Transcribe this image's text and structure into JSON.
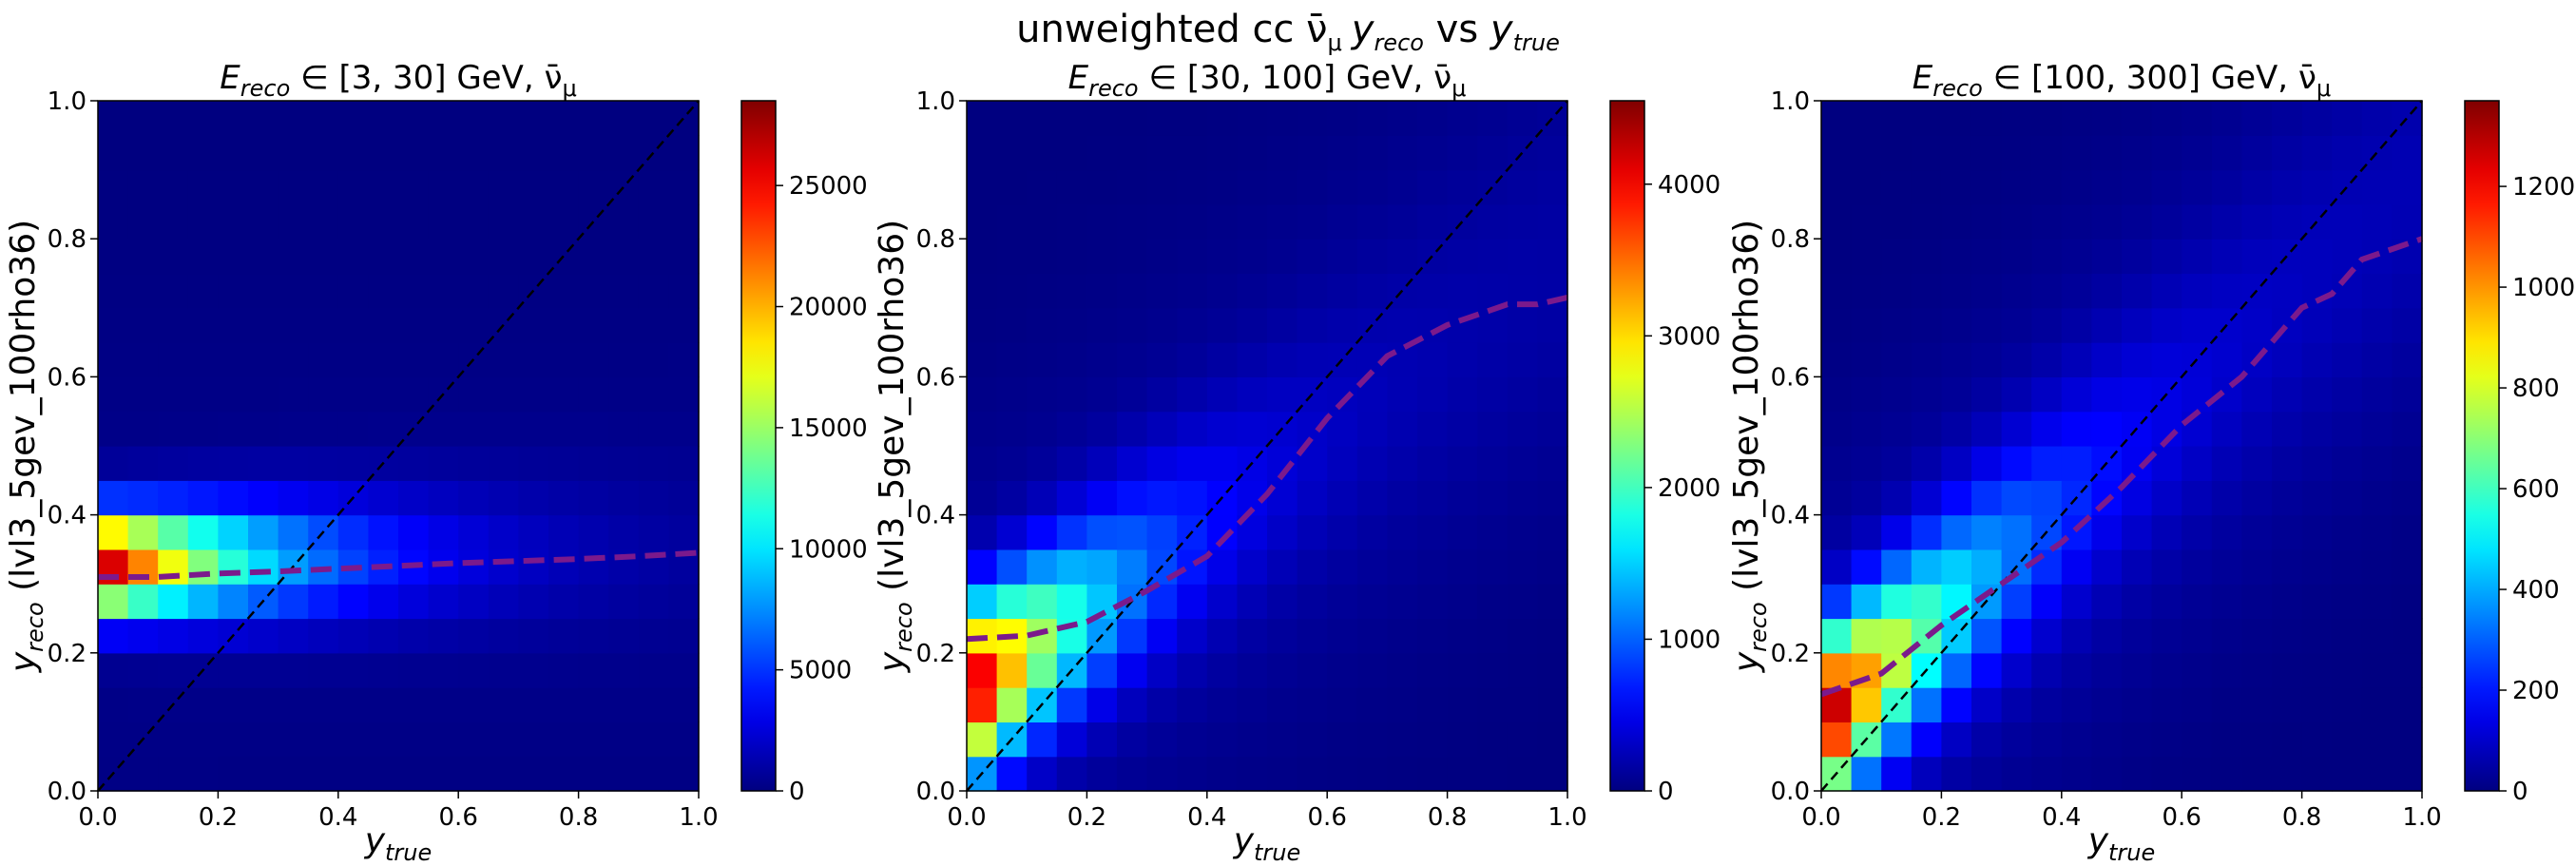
{
  "figure": {
    "title_parts": {
      "pre": "unweighted cc ",
      "nu": "ν̄",
      "nu_sub": "μ",
      "y1": "y",
      "y1_sub": "reco",
      "vs": " vs  ",
      "y2": "y",
      "y2_sub": "true"
    }
  },
  "chart_data": [
    {
      "type": "heatmap",
      "title_parts": {
        "E": "E",
        "E_sub": "reco",
        "range": " ∈ [3, 30] GeV, ",
        "nu": "ν̄",
        "nu_sub": "μ"
      },
      "xlabel": {
        "main": "y",
        "sub": "true"
      },
      "ylabel": {
        "main": "y",
        "sub": "reco",
        "rest": " (lvl3_5gev_100rho36)"
      },
      "xlim": [
        0,
        1
      ],
      "ylim": [
        0,
        1
      ],
      "xticks": [
        "0.0",
        "0.2",
        "0.4",
        "0.6",
        "0.8",
        "1.0"
      ],
      "yticks": [
        "0.0",
        "0.2",
        "0.4",
        "0.6",
        "0.8",
        "1.0"
      ],
      "colorbar": {
        "min": 0,
        "max": 28500,
        "ticks": [
          0,
          5000,
          10000,
          15000,
          20000,
          25000
        ]
      },
      "bins": 20,
      "density_model": {
        "ridge_start": 0.33,
        "ridge_slope": 0.02,
        "ridge_sigma": 0.05,
        "peak": 28500,
        "decay_x": 0.25,
        "floor": 300
      },
      "mean_curve": {
        "x": [
          0.0,
          0.1,
          0.2,
          0.3,
          0.4,
          0.5,
          0.6,
          0.7,
          0.8,
          0.9,
          1.0
        ],
        "y": [
          0.31,
          0.31,
          0.315,
          0.318,
          0.322,
          0.326,
          0.33,
          0.333,
          0.336,
          0.34,
          0.345
        ]
      },
      "diagonal": true
    },
    {
      "type": "heatmap",
      "title_parts": {
        "E": "E",
        "E_sub": "reco",
        "range": " ∈ [30, 100] GeV, ",
        "nu": "ν̄",
        "nu_sub": "μ"
      },
      "xlabel": {
        "main": "y",
        "sub": "true"
      },
      "ylabel": {
        "main": "y",
        "sub": "reco",
        "rest": " (lvl3_5gev_100rho36)"
      },
      "xlim": [
        0,
        1
      ],
      "ylim": [
        0,
        1
      ],
      "xticks": [
        "0.0",
        "0.2",
        "0.4",
        "0.6",
        "0.8",
        "1.0"
      ],
      "yticks": [
        "0.0",
        "0.2",
        "0.4",
        "0.6",
        "0.8",
        "1.0"
      ],
      "colorbar": {
        "min": 0,
        "max": 4550,
        "ticks": [
          0,
          1000,
          2000,
          3000,
          4000
        ]
      },
      "bins": 20,
      "density_model": {
        "ridge_start": 0.14,
        "ridge_slope": 0.62,
        "ridge_sigma": 0.08,
        "peak": 4550,
        "decay_x": 0.18,
        "floor": 150
      },
      "mean_curve": {
        "x": [
          0.0,
          0.1,
          0.2,
          0.3,
          0.4,
          0.5,
          0.6,
          0.7,
          0.8,
          0.9,
          0.95,
          1.0
        ],
        "y": [
          0.22,
          0.225,
          0.245,
          0.29,
          0.34,
          0.43,
          0.54,
          0.63,
          0.675,
          0.705,
          0.705,
          0.715
        ]
      },
      "diagonal": true
    },
    {
      "type": "heatmap",
      "title_parts": {
        "E": "E",
        "E_sub": "reco",
        "range": " ∈ [100, 300] GeV, ",
        "nu": "ν̄",
        "nu_sub": "μ"
      },
      "xlabel": {
        "main": "y",
        "sub": "true"
      },
      "ylabel": {
        "main": "y",
        "sub": "reco",
        "rest": " (lvl3_5gev_100rho36)"
      },
      "xlim": [
        0,
        1
      ],
      "ylim": [
        0,
        1
      ],
      "xticks": [
        "0.0",
        "0.2",
        "0.4",
        "0.6",
        "0.8",
        "1.0"
      ],
      "yticks": [
        "0.0",
        "0.2",
        "0.4",
        "0.6",
        "0.8",
        "1.0"
      ],
      "colorbar": {
        "min": 0,
        "max": 1370,
        "ticks": [
          0,
          200,
          400,
          600,
          800,
          1000,
          1200
        ]
      },
      "bins": 20,
      "density_model": {
        "ridge_start": 0.1,
        "ridge_slope": 0.78,
        "ridge_sigma": 0.08,
        "peak": 1370,
        "decay_x": 0.2,
        "floor": 60
      },
      "mean_curve": {
        "x": [
          0.0,
          0.1,
          0.2,
          0.3,
          0.4,
          0.5,
          0.6,
          0.7,
          0.8,
          0.85,
          0.9,
          1.0
        ],
        "y": [
          0.14,
          0.17,
          0.24,
          0.3,
          0.36,
          0.44,
          0.53,
          0.6,
          0.7,
          0.72,
          0.77,
          0.8
        ]
      },
      "diagonal": true
    }
  ]
}
